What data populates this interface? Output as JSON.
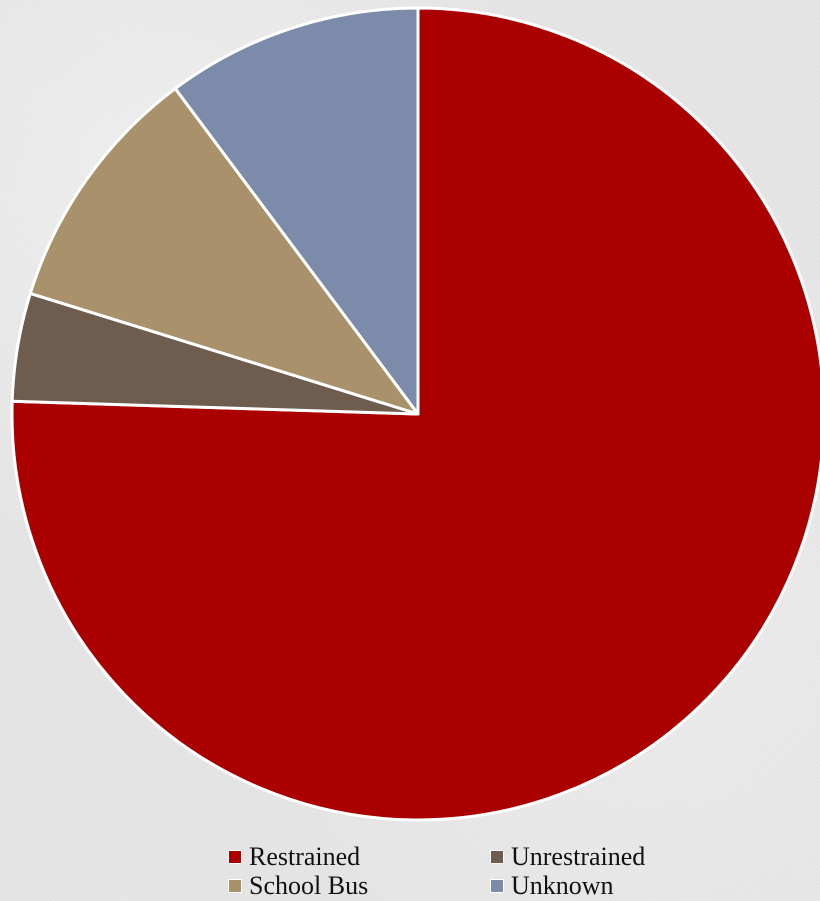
{
  "chart_data": {
    "type": "pie",
    "slices": [
      {
        "label": "Restrained",
        "value": 75.5,
        "color": "#ab0000"
      },
      {
        "label": "Unrestrained",
        "value": 4.3,
        "color": "#6e5c4f"
      },
      {
        "label": "School Bus",
        "value": 10.0,
        "color": "#a9926b"
      },
      {
        "label": "Unknown",
        "value": 10.2,
        "color": "#7b8ba9"
      }
    ],
    "legend_position": "bottom",
    "legend": {
      "items": [
        {
          "label": "Restrained",
          "color": "#ab0000"
        },
        {
          "label": "Unrestrained",
          "color": "#6e5c4f"
        },
        {
          "label": "School Bus",
          "color": "#a9926b"
        },
        {
          "label": "Unknown",
          "color": "#7b8ba9"
        }
      ]
    }
  }
}
